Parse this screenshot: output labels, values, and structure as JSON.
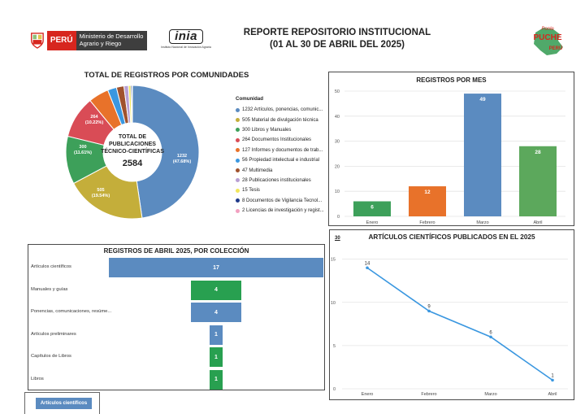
{
  "header": {
    "title_line1": "REPORTE REPOSITORIO INSTITUCIONAL",
    "title_line2": "(01 AL 30 DE ABRIL DEL 2025)",
    "peru_label": "PERÚ",
    "ministry_label": "Ministerio de Desarrollo Agrario y Riego",
    "inia_label": "inia",
    "inia_subtitle": "Instituto Nacional de Innovación Agraria",
    "ponle_line1": "Ponle",
    "ponle_line2": "PUCHE",
    "ponle_line3": "PERÚ"
  },
  "community_chart": {
    "title": "TOTAL DE REGISTROS POR COMUNIDADES",
    "center_line1": "TOTAL DE",
    "center_line2": "PUBLICACIONES",
    "center_line3": "TÉCNICO-CIENTÍFICAS",
    "total": "2584",
    "legend_header": "Comunidad",
    "label_1232": "1232",
    "pct_1232": "(47.68%)",
    "label_505": "505",
    "pct_505": "(19.54%)",
    "label_300": "300",
    "pct_300": "(11.61%)",
    "label_264": "264",
    "pct_264": "(10.22%)"
  },
  "monthly_chart": {
    "title": "REGISTROS POR MES"
  },
  "collection_chart": {
    "title": "REGISTROS DE ABRIL 2025, POR COLECCIÓN"
  },
  "articles_chart": {
    "title": "ARTÍCULOS CIENTÍFICOS PUBLICADOS EN EL 2025",
    "ytop_label": "30"
  },
  "filter": {
    "selected": "Artículos científicos"
  },
  "colors": {
    "blue": "#5b8bc0",
    "gold": "#c4ae3a",
    "green": "#3da05a",
    "red": "#d94c56",
    "orange": "#e8722a",
    "sky": "#3a97e0",
    "brown": "#a0522d",
    "lilac": "#b89fd3",
    "yellow": "#f2e65c",
    "navy": "#1f3a8a",
    "pink": "#f2a0c0",
    "line": "#3a97e0"
  },
  "chart_data": [
    {
      "type": "pie",
      "title": "TOTAL DE REGISTROS POR COMUNIDADES",
      "categories": [
        "1232 Artículos, ponencias, comunic...",
        "505 Material de divulgación técnica",
        "300 Libros y Manuales",
        "264 Documentos Institucionales",
        "127 Informes y documentos de trab...",
        "56 Propiedad intelectual e industrial",
        "47 Multimedia",
        "28 Publicaciones institucionales",
        "15 Tesis",
        "8 Documentos de Vigilancia Tecnol...",
        "2 Licencias de investigación y regist..."
      ],
      "values": [
        1232,
        505,
        300,
        264,
        127,
        56,
        47,
        28,
        15,
        8,
        2
      ],
      "colors": [
        "#5b8bc0",
        "#c4ae3a",
        "#3da05a",
        "#d94c56",
        "#e8722a",
        "#3a97e0",
        "#a0522d",
        "#b89fd3",
        "#f2e65c",
        "#1f3a8a",
        "#f2a0c0"
      ]
    },
    {
      "type": "bar",
      "title": "REGISTROS POR MES",
      "categories": [
        "Enero",
        "Febrero",
        "Marzo",
        "Abril"
      ],
      "values": [
        6,
        12,
        49,
        28
      ],
      "colors": [
        "#3da05a",
        "#e8722a",
        "#5b8bc0",
        "#5ca85c"
      ],
      "ylim": [
        0,
        50
      ],
      "yticks": [
        0,
        10,
        20,
        30,
        40,
        50
      ]
    },
    {
      "type": "bar",
      "title": "REGISTROS DE ABRIL 2025, POR COLECCIÓN",
      "categories": [
        "Artículos científicos",
        "Manuales y guías",
        "Ponencias, comunicaciones, resúme...",
        "Artículos preliminares",
        "Capítulos de Libros",
        "Libros"
      ],
      "values": [
        17,
        4,
        4,
        1,
        1,
        1
      ],
      "colors": [
        "#5b8bc0",
        "#28a050",
        "#5b8bc0",
        "#5b8bc0",
        "#28a050",
        "#28a050"
      ]
    },
    {
      "type": "line",
      "title": "ARTÍCULOS CIENTÍFICOS PUBLICADOS EN EL 2025",
      "categories": [
        "Enero",
        "Febrero",
        "Marzo",
        "Abril"
      ],
      "values": [
        14,
        9,
        6,
        1
      ],
      "ylim": [
        0,
        16
      ],
      "yticks": [
        0,
        5,
        10,
        15
      ]
    }
  ]
}
